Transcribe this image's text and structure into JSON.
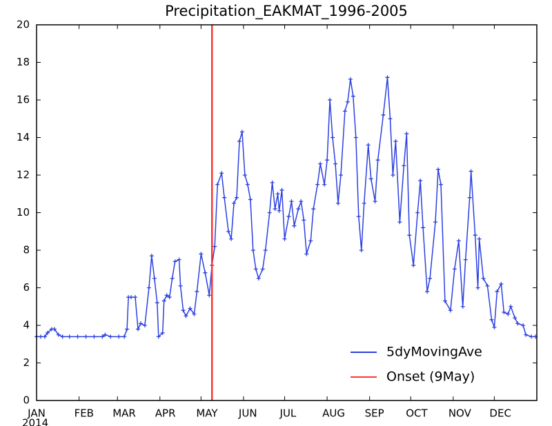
{
  "chart_data": {
    "type": "line",
    "title": "Precipitation_EAKMAT_1996-2005",
    "x_year_label": "2014",
    "x": [
      0,
      3,
      6,
      8,
      11,
      13,
      16,
      19,
      24,
      30,
      36,
      42,
      48,
      50,
      54,
      60,
      64,
      66,
      67,
      69,
      72,
      74,
      76,
      79,
      82,
      84,
      86,
      88,
      89,
      92,
      93,
      95,
      97,
      99,
      101,
      104,
      105,
      107,
      109,
      112,
      115,
      117,
      120,
      123,
      126,
      128,
      130,
      132,
      135,
      137,
      140,
      142,
      144,
      146,
      148,
      150,
      152,
      154,
      156,
      158,
      160,
      162,
      165,
      167,
      170,
      172,
      174,
      176,
      177,
      179,
      181,
      184,
      186,
      188,
      191,
      193,
      195,
      197,
      200,
      202,
      205,
      207,
      210,
      212,
      214,
      216,
      218,
      220,
      222,
      225,
      227,
      229,
      231,
      233,
      235,
      237,
      239,
      242,
      244,
      247,
      249,
      253,
      256,
      258,
      260,
      262,
      265,
      268,
      270,
      272,
      275,
      278,
      280,
      282,
      285,
      287,
      291,
      293,
      295,
      298,
      302,
      305,
      308,
      311,
      313,
      316,
      317,
      320,
      322,
      323,
      326,
      329,
      332,
      334,
      336,
      339,
      341,
      344,
      346,
      349,
      351,
      355,
      357,
      361,
      364
    ],
    "series": [
      {
        "name": "5dyMovingAve",
        "color": "#2a3fe0",
        "values": [
          3.4,
          3.4,
          3.4,
          3.6,
          3.8,
          3.8,
          3.5,
          3.4,
          3.4,
          3.4,
          3.4,
          3.4,
          3.4,
          3.5,
          3.4,
          3.4,
          3.4,
          3.8,
          5.5,
          5.5,
          5.5,
          3.8,
          4.1,
          4.0,
          6.0,
          7.7,
          6.5,
          5.2,
          3.4,
          3.6,
          5.3,
          5.6,
          5.5,
          6.5,
          7.4,
          7.5,
          6.1,
          4.8,
          4.5,
          4.9,
          4.6,
          5.8,
          7.8,
          6.8,
          5.6,
          7.2,
          8.2,
          11.5,
          12.1,
          10.8,
          9.0,
          8.6,
          10.5,
          10.8,
          13.8,
          14.3,
          12.0,
          11.5,
          10.7,
          8.0,
          7.0,
          6.5,
          7.0,
          8.0,
          10.0,
          11.6,
          10.2,
          11.0,
          10.1,
          11.2,
          8.6,
          9.8,
          10.6,
          9.3,
          10.2,
          10.6,
          9.6,
          7.8,
          8.5,
          10.2,
          11.5,
          12.6,
          11.5,
          12.8,
          16.0,
          14.0,
          12.6,
          10.5,
          12.0,
          15.4,
          15.9,
          17.1,
          16.2,
          14.0,
          9.8,
          8.0,
          10.5,
          13.6,
          11.8,
          10.6,
          12.8,
          15.2,
          17.2,
          15.0,
          12.0,
          13.8,
          9.5,
          12.5,
          14.2,
          8.8,
          7.2,
          10.0,
          11.7,
          9.2,
          5.8,
          6.5,
          9.5,
          12.3,
          11.5,
          5.3,
          4.8,
          7.0,
          8.5,
          5.0,
          7.5,
          10.8,
          12.2,
          8.8,
          6.0,
          8.6,
          6.5,
          6.1,
          4.3,
          3.9,
          5.8,
          6.2,
          4.7,
          4.6,
          5.0,
          4.4,
          4.1,
          4.0,
          3.5,
          3.4,
          3.4
        ]
      }
    ],
    "onset": {
      "name": "Onset (9May)",
      "x": 128,
      "color": "#ff3333"
    },
    "xlim": [
      0,
      365
    ],
    "xticks": [
      {
        "value": 0,
        "label": "JAN"
      },
      {
        "value": 31,
        "label": "FEB"
      },
      {
        "value": 59,
        "label": "MAR"
      },
      {
        "value": 90,
        "label": "APR"
      },
      {
        "value": 120,
        "label": "MAY"
      },
      {
        "value": 151,
        "label": "JUN"
      },
      {
        "value": 181,
        "label": "JUL"
      },
      {
        "value": 212,
        "label": "AUG"
      },
      {
        "value": 243,
        "label": "SEP"
      },
      {
        "value": 273,
        "label": "OCT"
      },
      {
        "value": 304,
        "label": "NOV"
      },
      {
        "value": 334,
        "label": "DEC"
      }
    ],
    "ylim": [
      0,
      20
    ],
    "yticks": [
      0,
      2,
      4,
      6,
      8,
      10,
      12,
      14,
      16,
      18,
      20
    ],
    "legend": "lower right"
  }
}
